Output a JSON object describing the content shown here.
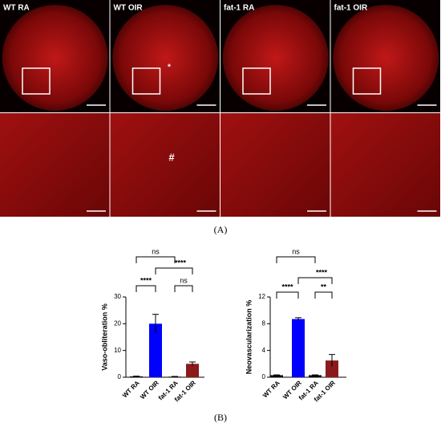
{
  "panel_labels": [
    "WT RA",
    "WT OIR",
    "fat-1 RA",
    "fat-1 OIR"
  ],
  "image_marks": [
    "*",
    "#"
  ],
  "captions": [
    "(A)",
    "(B)"
  ],
  "chart_data": [
    {
      "type": "bar",
      "ylabel": "Vaso-obliteration %",
      "categories": [
        "WT RA",
        "WT OIR",
        "fat-1 RA",
        "fat-1 OIR"
      ],
      "values": [
        0.3,
        20,
        0.2,
        5
      ],
      "errors": [
        0.1,
        3.5,
        0.1,
        0.7
      ],
      "colors": [
        "#000000",
        "#0000ff",
        "#000000",
        "#8b1a1a"
      ],
      "ylim": [
        0,
        30
      ],
      "yticks": [
        0,
        10,
        20,
        30
      ],
      "annotations": [
        "ns",
        "****",
        "****",
        "ns"
      ]
    },
    {
      "type": "bar",
      "ylabel": "Neovascularization %",
      "categories": [
        "WT RA",
        "WT OIR",
        "fat-1 RA",
        "fat-1 OIR"
      ],
      "values": [
        0.3,
        8.7,
        0.3,
        2.5
      ],
      "errors": [
        0.05,
        0.2,
        0.05,
        0.9
      ],
      "colors": [
        "#000000",
        "#0000ff",
        "#000000",
        "#8b1a1a"
      ],
      "ylim": [
        0,
        12
      ],
      "yticks": [
        0,
        4,
        8,
        12
      ],
      "annotations": [
        "ns",
        "****",
        "****",
        "**"
      ]
    }
  ]
}
